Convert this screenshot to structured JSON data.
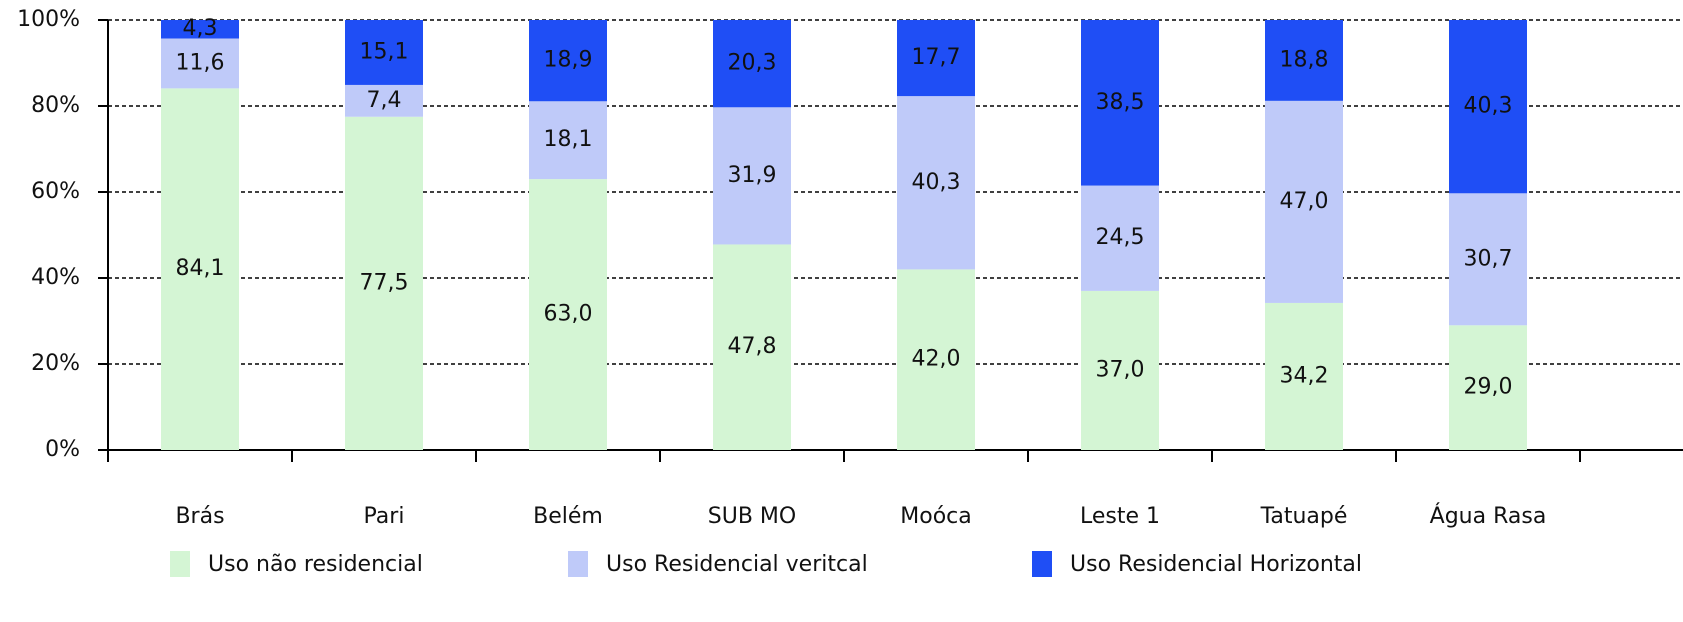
{
  "chart_data": {
    "type": "stacked_bar",
    "categories": [
      "Brás",
      "Pari",
      "Belém",
      "SUB MO",
      "Moóca",
      "Leste 1",
      "Tatuapé",
      "Água Rasa"
    ],
    "series": [
      {
        "name": "Uso não residencial",
        "color": "#d4f5d4",
        "values": [
          84.1,
          77.5,
          63.0,
          47.8,
          42.0,
          37.0,
          34.2,
          29.0
        ],
        "value_labels": [
          "84,1",
          "77,5",
          "63,0",
          "47,8",
          "42,0",
          "37,0",
          "34,2",
          "29,0"
        ]
      },
      {
        "name": "Uso Residencial veritcal",
        "color": "#bfcaf9",
        "values": [
          11.6,
          7.4,
          18.1,
          31.9,
          40.3,
          24.5,
          47.0,
          30.7
        ],
        "value_labels": [
          "11,6",
          "7,4",
          "18,1",
          "31,9",
          "40,3",
          "24,5",
          "47,0",
          "30,7"
        ]
      },
      {
        "name": "Uso Residencial Horizontal",
        "color": "#1f4ef5",
        "values": [
          4.3,
          15.1,
          18.9,
          20.3,
          17.7,
          38.5,
          18.8,
          40.3
        ],
        "value_labels": [
          "4,3",
          "15,1",
          "18,9",
          "20,3",
          "17,7",
          "38,5",
          "18,8",
          "40,3"
        ]
      }
    ],
    "ylim": [
      0,
      100
    ],
    "yticks": [
      {
        "value": 0,
        "label": "0%"
      },
      {
        "value": 20,
        "label": "20%"
      },
      {
        "value": 40,
        "label": "40%"
      },
      {
        "value": 60,
        "label": "60%"
      },
      {
        "value": 80,
        "label": "80%"
      },
      {
        "value": 100,
        "label": "100%"
      }
    ],
    "grid": true
  }
}
